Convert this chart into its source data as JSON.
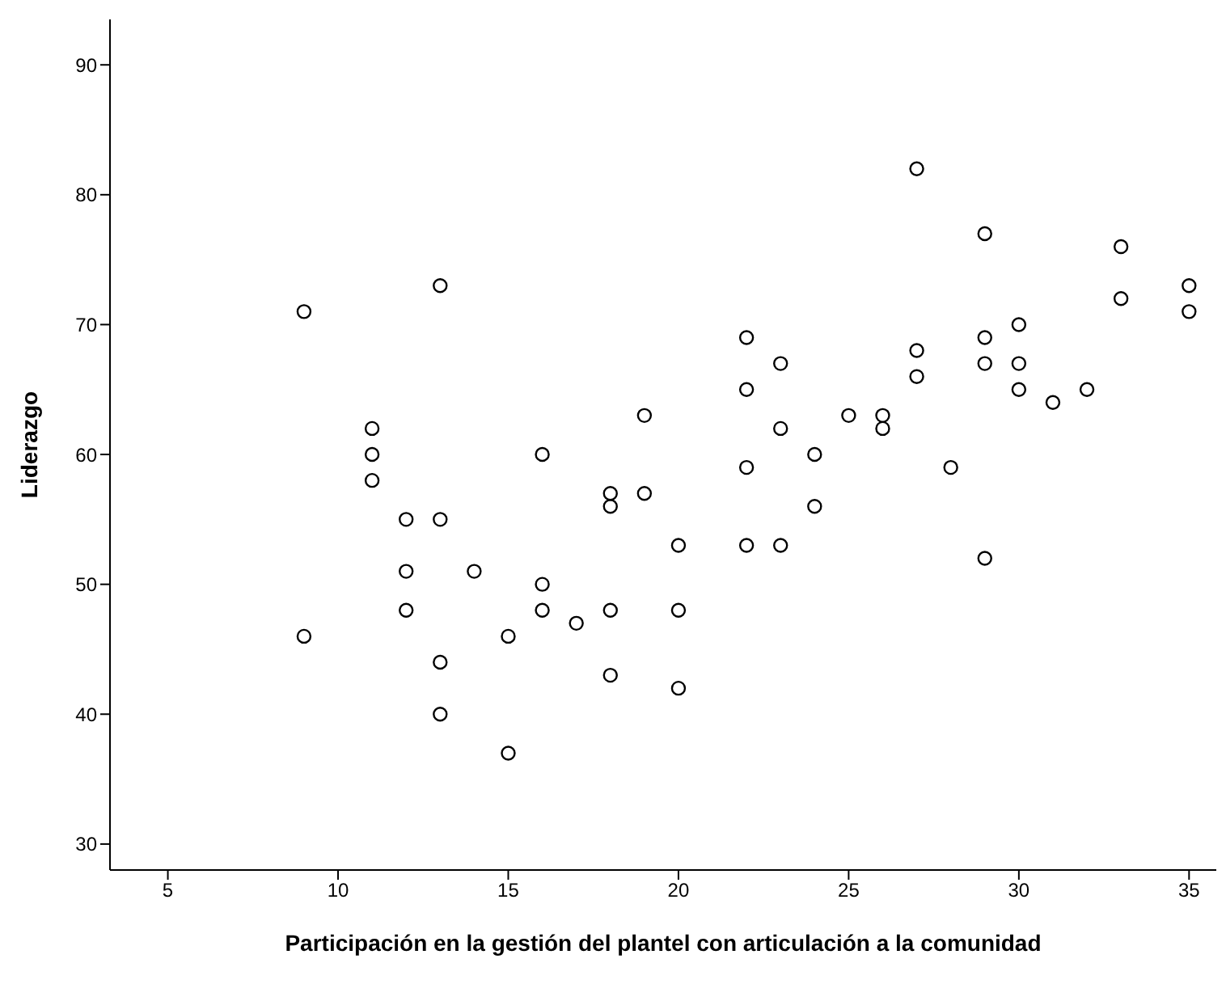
{
  "chart_data": {
    "type": "scatter",
    "xlabel": "Participación en la gestión del plantel con articulación a la comunidad",
    "ylabel": "Liderazgo",
    "x": [
      9,
      9,
      11,
      11,
      11,
      12,
      12,
      12,
      13,
      13,
      13,
      13,
      14,
      15,
      15,
      16,
      16,
      16,
      17,
      18,
      18,
      18,
      18,
      19,
      19,
      20,
      20,
      20,
      22,
      22,
      22,
      22,
      23,
      23,
      23,
      24,
      24,
      25,
      26,
      26,
      27,
      27,
      27,
      28,
      29,
      29,
      29,
      29,
      30,
      30,
      30,
      31,
      32,
      33,
      33,
      35,
      35
    ],
    "values": [
      71,
      46,
      62,
      60,
      58,
      55,
      51,
      48,
      73,
      55,
      44,
      40,
      51,
      46,
      37,
      60,
      50,
      48,
      47,
      57,
      56,
      48,
      43,
      63,
      57,
      53,
      48,
      42,
      69,
      65,
      59,
      53,
      67,
      62,
      53,
      60,
      56,
      63,
      63,
      62,
      82,
      68,
      66,
      59,
      77,
      69,
      67,
      52,
      70,
      67,
      65,
      64,
      65,
      76,
      72,
      73,
      71
    ],
    "color": "#000000",
    "marker": "circle",
    "xlim": [
      3.3,
      35.8
    ],
    "ylim": [
      28,
      93.5
    ],
    "xticks": [
      5,
      10,
      15,
      20,
      25,
      30,
      35
    ],
    "yticks": [
      30,
      40,
      50,
      60,
      70,
      80,
      90
    ],
    "grid": false,
    "legend": false
  }
}
